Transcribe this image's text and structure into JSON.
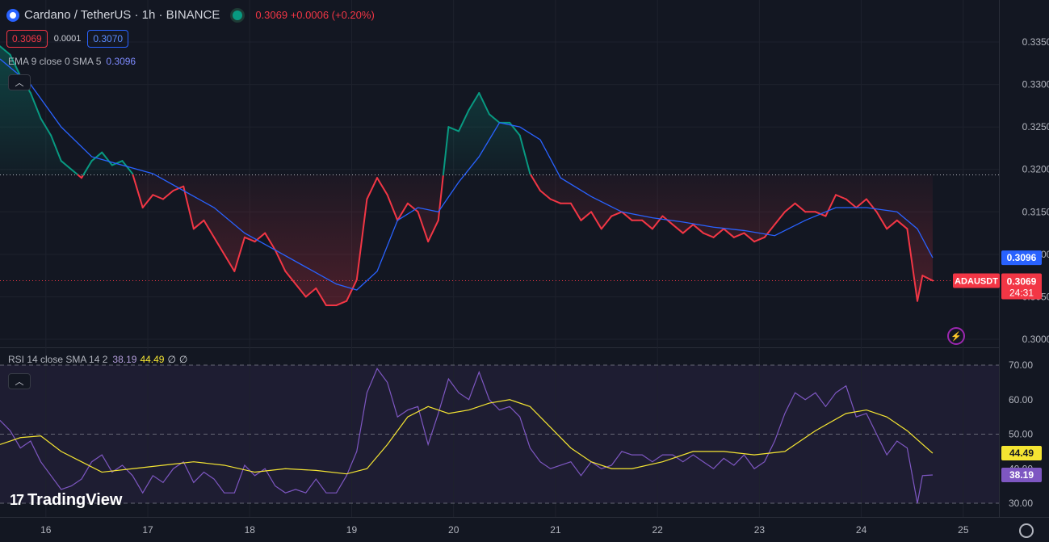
{
  "header": {
    "symbol_title": "Cardano / TetherUS · 1h · BINANCE",
    "quote": "0.3069  +0.0006 (+0.20%)",
    "sell_price": "0.3069",
    "spread": "0.0001",
    "buy_price": "0.3070"
  },
  "ema_legend": {
    "label": "EMA 9 close 0 SMA 5",
    "value": "0.3096"
  },
  "rsi_legend": {
    "label": "RSI 14 close SMA 14 2",
    "rsi_value": "38.19",
    "sma_value": "44.49",
    "null1": "∅",
    "null2": "∅"
  },
  "price_labels": {
    "ema_tag": "0.3096",
    "symbol_tag": "ADAUSDT",
    "last_price_tag": "0.3069",
    "countdown": "24:31"
  },
  "rsi_labels": {
    "sma_tag": "44.49",
    "rsi_tag": "38.19"
  },
  "branding": {
    "logo_text": "TradingView",
    "logo_mark": "17"
  },
  "icons": {
    "collapse": "chevron-up-icon",
    "alert": "lightning-icon",
    "settings": "gear-icon"
  },
  "colors": {
    "up": "#089981",
    "down": "#f23645",
    "ema": "#2962ff",
    "rsi": "#7e57c2",
    "rsi_sma": "#f5e532"
  },
  "chart_data": [
    {
      "type": "line",
      "name": "ADAUSDT",
      "yticks": [
        "0.3350",
        "0.3300",
        "0.3250",
        "0.3200",
        "0.3150",
        "0.3100",
        "0.3050",
        "0.3000"
      ],
      "ylim": [
        0.298,
        0.337
      ],
      "xticks": [
        "16",
        "17",
        "18",
        "19",
        "20",
        "21",
        "22",
        "23",
        "24",
        "25"
      ],
      "xlim": [
        15.55,
        25.35
      ],
      "reference_price": 0.31935,
      "last_price": 0.3069,
      "series": [
        {
          "name": "ADAUSDT",
          "x": [
            15.55,
            15.65,
            15.75,
            15.85,
            15.95,
            16.05,
            16.15,
            16.25,
            16.35,
            16.45,
            16.55,
            16.65,
            16.75,
            16.85,
            16.95,
            17.05,
            17.15,
            17.25,
            17.35,
            17.45,
            17.55,
            17.65,
            17.75,
            17.85,
            17.95,
            18.05,
            18.15,
            18.25,
            18.35,
            18.45,
            18.55,
            18.65,
            18.75,
            18.85,
            18.95,
            19.05,
            19.15,
            19.25,
            19.35,
            19.45,
            19.55,
            19.65,
            19.75,
            19.85,
            19.95,
            20.05,
            20.15,
            20.25,
            20.35,
            20.45,
            20.55,
            20.65,
            20.75,
            20.85,
            20.95,
            21.05,
            21.15,
            21.25,
            21.35,
            21.45,
            21.55,
            21.65,
            21.75,
            21.85,
            21.95,
            22.05,
            22.15,
            22.25,
            22.35,
            22.45,
            22.55,
            22.65,
            22.75,
            22.85,
            22.95,
            23.05,
            23.15,
            23.25,
            23.35,
            23.45,
            23.55,
            23.65,
            23.75,
            23.85,
            23.95,
            24.05,
            24.15,
            24.25,
            24.35,
            24.45,
            24.55,
            24.6,
            24.7
          ],
          "y": [
            0.3345,
            0.3335,
            0.331,
            0.329,
            0.326,
            0.324,
            0.321,
            0.32,
            0.319,
            0.321,
            0.322,
            0.3205,
            0.321,
            0.3195,
            0.3155,
            0.317,
            0.3165,
            0.3175,
            0.318,
            0.313,
            0.314,
            0.312,
            0.31,
            0.308,
            0.312,
            0.3115,
            0.3125,
            0.3105,
            0.308,
            0.3065,
            0.305,
            0.306,
            0.304,
            0.304,
            0.3045,
            0.307,
            0.3165,
            0.319,
            0.317,
            0.314,
            0.316,
            0.315,
            0.3115,
            0.314,
            0.325,
            0.3245,
            0.327,
            0.329,
            0.3265,
            0.3255,
            0.3255,
            0.324,
            0.3195,
            0.3175,
            0.3165,
            0.316,
            0.316,
            0.314,
            0.315,
            0.313,
            0.3145,
            0.315,
            0.314,
            0.314,
            0.313,
            0.3145,
            0.3135,
            0.3125,
            0.3135,
            0.3125,
            0.312,
            0.313,
            0.312,
            0.3125,
            0.3115,
            0.312,
            0.3135,
            0.315,
            0.316,
            0.315,
            0.315,
            0.3145,
            0.317,
            0.3165,
            0.3155,
            0.3165,
            0.315,
            0.313,
            0.314,
            0.313,
            0.3045,
            0.3075,
            0.3069
          ]
        },
        {
          "name": "EMA 9 close 0 SMA 5",
          "x": [
            15.55,
            15.85,
            16.15,
            16.45,
            16.75,
            17.05,
            17.35,
            17.65,
            17.95,
            18.25,
            18.55,
            18.85,
            19.05,
            19.25,
            19.45,
            19.65,
            19.85,
            20.05,
            20.25,
            20.45,
            20.65,
            20.85,
            21.05,
            21.35,
            21.65,
            21.95,
            22.25,
            22.55,
            22.85,
            23.15,
            23.45,
            23.75,
            24.05,
            24.35,
            24.55,
            24.7
          ],
          "y": [
            0.333,
            0.33,
            0.325,
            0.3215,
            0.3205,
            0.3195,
            0.3175,
            0.3155,
            0.3125,
            0.3105,
            0.3085,
            0.3065,
            0.3058,
            0.308,
            0.314,
            0.3155,
            0.315,
            0.3185,
            0.3215,
            0.3255,
            0.325,
            0.3235,
            0.319,
            0.3168,
            0.315,
            0.3143,
            0.3138,
            0.3132,
            0.3128,
            0.3122,
            0.314,
            0.3155,
            0.3155,
            0.315,
            0.313,
            0.3096
          ]
        }
      ]
    },
    {
      "type": "line",
      "name": "RSI 14 close SMA 14 2",
      "yticks": [
        "70.00",
        "60.00",
        "50.00",
        "40.00",
        "30.00"
      ],
      "ylim": [
        28,
        72
      ],
      "bands": [
        30,
        70
      ],
      "midline": 50,
      "series": [
        {
          "name": "RSI",
          "x": [
            15.55,
            15.65,
            15.75,
            15.85,
            15.95,
            16.05,
            16.15,
            16.25,
            16.35,
            16.45,
            16.55,
            16.65,
            16.75,
            16.85,
            16.95,
            17.05,
            17.15,
            17.25,
            17.35,
            17.45,
            17.55,
            17.65,
            17.75,
            17.85,
            17.95,
            18.05,
            18.15,
            18.25,
            18.35,
            18.45,
            18.55,
            18.65,
            18.75,
            18.85,
            18.95,
            19.05,
            19.15,
            19.25,
            19.35,
            19.45,
            19.55,
            19.65,
            19.75,
            19.85,
            19.95,
            20.05,
            20.15,
            20.25,
            20.35,
            20.45,
            20.55,
            20.65,
            20.75,
            20.85,
            20.95,
            21.05,
            21.15,
            21.25,
            21.35,
            21.45,
            21.55,
            21.65,
            21.75,
            21.85,
            21.95,
            22.05,
            22.15,
            22.25,
            22.35,
            22.45,
            22.55,
            22.65,
            22.75,
            22.85,
            22.95,
            23.05,
            23.15,
            23.25,
            23.35,
            23.45,
            23.55,
            23.65,
            23.75,
            23.85,
            23.95,
            24.05,
            24.15,
            24.25,
            24.35,
            24.45,
            24.55,
            24.6,
            24.7
          ],
          "y": [
            54,
            51,
            46,
            48,
            42,
            38,
            34,
            35,
            37,
            42,
            44,
            39,
            41,
            38,
            33,
            38,
            36,
            40,
            42,
            36,
            39,
            37,
            33,
            33,
            41,
            38,
            40,
            35,
            33,
            34,
            33,
            37,
            33,
            33,
            38,
            45,
            62,
            69,
            65,
            55,
            57,
            58,
            47,
            56,
            66,
            62,
            60,
            68,
            60,
            57,
            58,
            55,
            46,
            42,
            40,
            41,
            42,
            38,
            42,
            40,
            41,
            45,
            44,
            44,
            42,
            44,
            44,
            42,
            44,
            42,
            40,
            43,
            41,
            44,
            40,
            42,
            48,
            56,
            62,
            60,
            62,
            58,
            62,
            64,
            55,
            56,
            50,
            44,
            48,
            46,
            30,
            38,
            38.19
          ]
        },
        {
          "name": "SMA 14",
          "x": [
            15.55,
            15.75,
            15.95,
            16.15,
            16.35,
            16.55,
            16.85,
            17.15,
            17.45,
            17.75,
            18.05,
            18.35,
            18.65,
            18.95,
            19.15,
            19.35,
            19.55,
            19.75,
            19.95,
            20.15,
            20.35,
            20.55,
            20.75,
            20.95,
            21.15,
            21.35,
            21.55,
            21.75,
            22.05,
            22.35,
            22.65,
            22.95,
            23.25,
            23.55,
            23.85,
            24.05,
            24.25,
            24.45,
            24.7
          ],
          "y": [
            47,
            49,
            49.5,
            45,
            42,
            39,
            40,
            41,
            42,
            41,
            39,
            40,
            39.5,
            38.5,
            40,
            47,
            55,
            58,
            56,
            57,
            59,
            60,
            58,
            52,
            46,
            42,
            40,
            40,
            42,
            45,
            45,
            44,
            45,
            51,
            56,
            57,
            55,
            51,
            44.49
          ]
        }
      ]
    }
  ]
}
